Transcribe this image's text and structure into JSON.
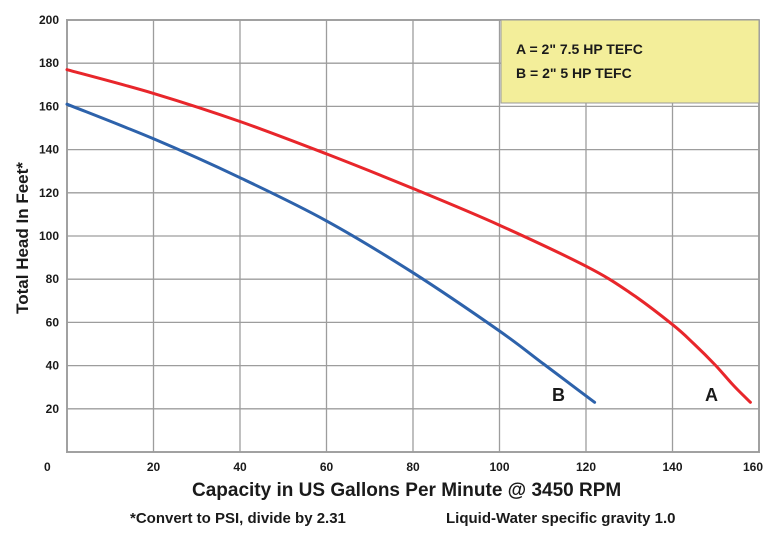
{
  "chart_data": {
    "type": "line",
    "xlabel": "Capacity in US Gallons Per Minute @ 3450 RPM",
    "ylabel": "Total Head In Feet*",
    "xlim": [
      0,
      160
    ],
    "ylim": [
      0,
      200
    ],
    "x_ticks": [
      "0",
      "20",
      "40",
      "60",
      "80",
      "100",
      "120",
      "140",
      "160"
    ],
    "y_ticks": [
      "20",
      "40",
      "60",
      "80",
      "100",
      "120",
      "140",
      "160",
      "180",
      "200"
    ],
    "grid": true,
    "legend": {
      "placement": "top-right",
      "background": "#f3ee9a",
      "entries": [
        "A = 2\"  7.5 HP TEFC",
        "B = 2\"  5 HP TEFC"
      ]
    },
    "series": [
      {
        "name": "A",
        "color": "#e8262b",
        "x": [
          0,
          20,
          40,
          60,
          80,
          100,
          120,
          130,
          140,
          145,
          150,
          154,
          158
        ],
        "y": [
          177,
          166,
          153,
          138,
          122,
          105,
          86,
          74,
          59,
          50,
          40,
          31,
          23
        ]
      },
      {
        "name": "B",
        "color": "#2d62ab",
        "x": [
          0,
          20,
          40,
          60,
          80,
          100,
          110,
          118,
          122
        ],
        "y": [
          161,
          145,
          127,
          107,
          83,
          56,
          41,
          29,
          23
        ]
      }
    ],
    "notes": [
      "*Convert to PSI, divide by 2.31",
      "Liquid-Water specific gravity 1.0"
    ]
  }
}
